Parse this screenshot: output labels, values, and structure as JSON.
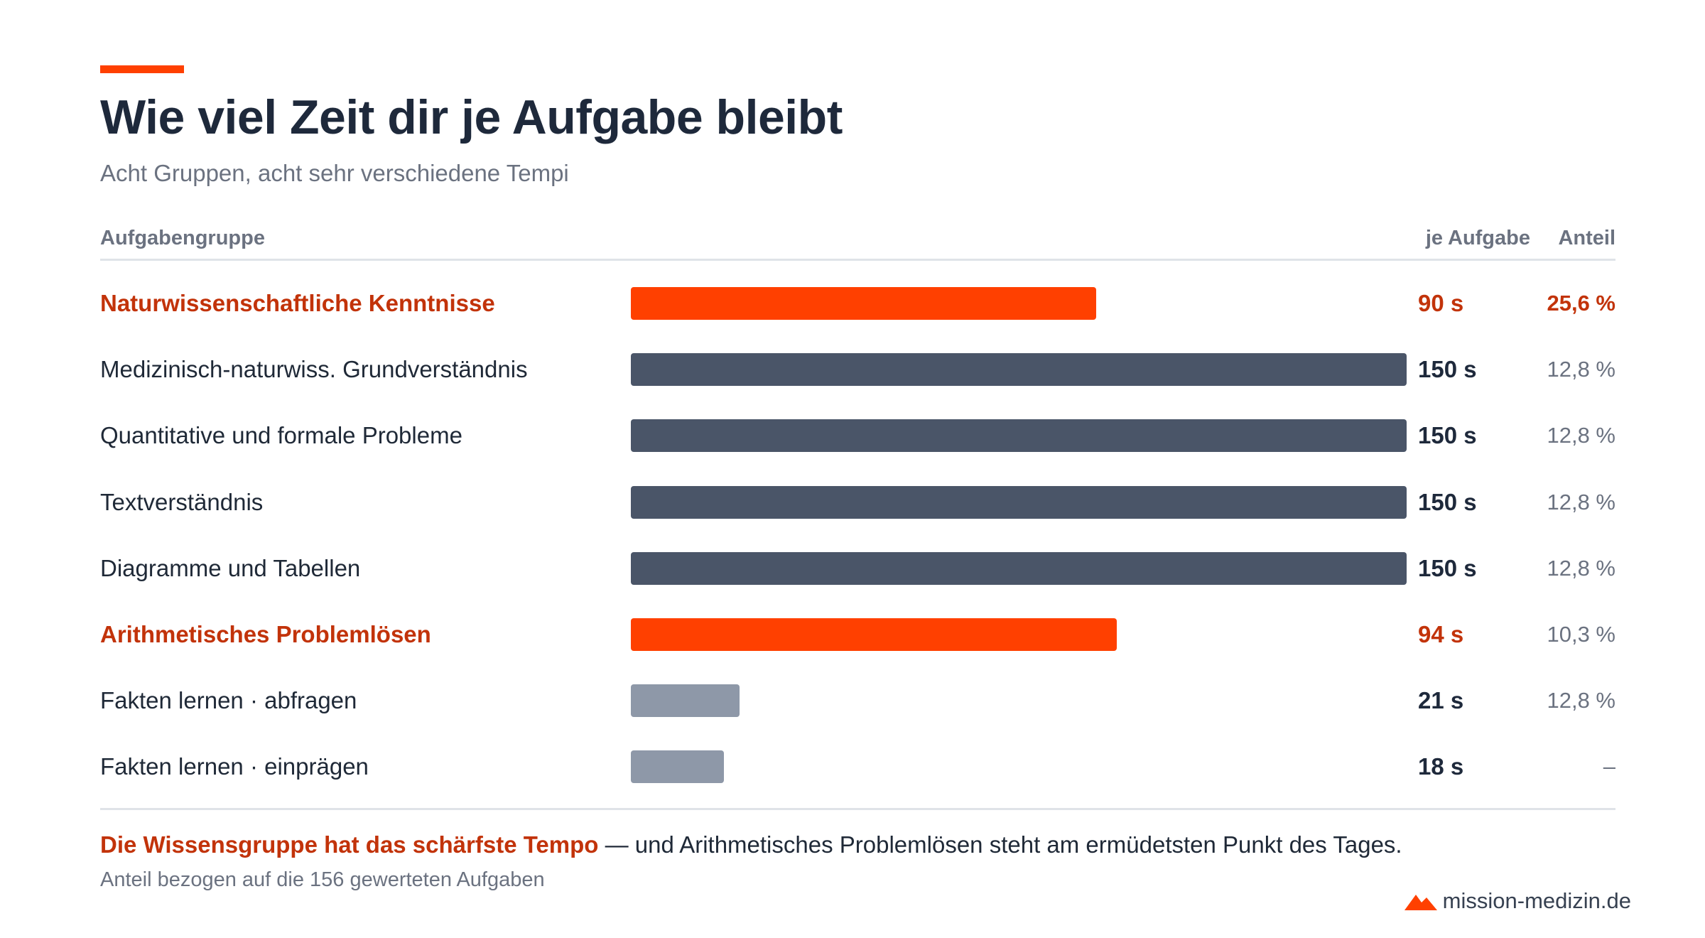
{
  "header": {
    "title": "Wie viel Zeit dir je Aufgabe bleibt",
    "subtitle": "Acht Gruppen, acht sehr verschiedene Tempi"
  },
  "columns": {
    "group": "Aufgabengruppe",
    "per_task": "je Aufgabe",
    "share": "Anteil"
  },
  "colors": {
    "accent": "#ff4000",
    "accent_text": "#c2330a",
    "bar_dark": "#4a5568",
    "bar_light": "#8e98a8"
  },
  "chart_data": {
    "type": "bar",
    "orientation": "horizontal",
    "unit": "s",
    "xlim": [
      0,
      150
    ],
    "categories": [
      "Naturwissenschaftliche Kenntnisse",
      "Medizinisch-naturwiss. Grundverständnis",
      "Quantitative und formale Probleme",
      "Textverständnis",
      "Diagramme und Tabellen",
      "Arithmetisches Problemlösen",
      "Fakten lernen · abfragen",
      "Fakten lernen · einprägen"
    ],
    "values": [
      90,
      150,
      150,
      150,
      150,
      94,
      21,
      18
    ],
    "value_labels": [
      "90 s",
      "150 s",
      "150 s",
      "150 s",
      "150 s",
      "94 s",
      "21 s",
      "18 s"
    ],
    "shares": [
      "25,6 %",
      "12,8 %",
      "12,8 %",
      "12,8 %",
      "12,8 %",
      "10,3 %",
      "12,8 %",
      "–"
    ],
    "highlight": [
      true,
      false,
      false,
      false,
      false,
      true,
      false,
      false
    ],
    "bar_color": [
      "#ff4000",
      "#4a5568",
      "#4a5568",
      "#4a5568",
      "#4a5568",
      "#ff4000",
      "#8e98a8",
      "#8e98a8"
    ]
  },
  "footer": {
    "lead": "Die Wissensgruppe hat das schärfste Tempo",
    "rest": " — und Arithmetisches Problemlösen steht am ermüdetsten Punkt des Tages.",
    "note": "Anteil bezogen auf die 156 gewerteten Aufgaben",
    "brand": "mission-medizin.de",
    "brand_icon": "mountain-icon"
  }
}
